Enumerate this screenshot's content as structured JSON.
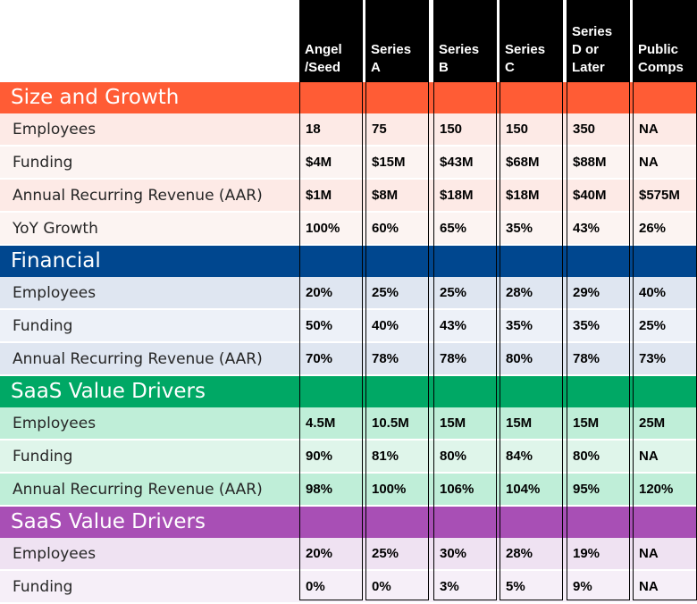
{
  "columns": [
    [
      "Angel",
      "/Seed"
    ],
    [
      "Series",
      "A"
    ],
    [
      "Series",
      "B"
    ],
    [
      "Series",
      "C"
    ],
    [
      "Series",
      "D or",
      "Later"
    ],
    [
      "Public",
      "Comps"
    ]
  ],
  "sections": [
    {
      "title": "Size and Growth",
      "color": "#ff5c35",
      "row_colors": [
        "#fdeae6",
        "#fcf4f2"
      ],
      "rows": [
        {
          "label": "Employees",
          "values": [
            "18",
            "75",
            "150",
            "150",
            "350",
            "NA"
          ]
        },
        {
          "label": "Funding",
          "values": [
            "$4M",
            "$15M",
            "$43M",
            "$68M",
            "$88M",
            "NA"
          ]
        },
        {
          "label": "Annual Recurring Revenue (AAR)",
          "values": [
            "$1M",
            "$8M",
            "$18M",
            "$18M",
            "$40M",
            "$575M"
          ]
        },
        {
          "label": "YoY Growth",
          "values": [
            "100%",
            "60%",
            "65%",
            "35%",
            "43%",
            "26%"
          ]
        }
      ]
    },
    {
      "title": "Financial",
      "color": "#00478f",
      "row_colors": [
        "#dfe6f1",
        "#edf1f8"
      ],
      "rows": [
        {
          "label": "Employees",
          "values": [
            "20%",
            "25%",
            "25%",
            "28%",
            "29%",
            "40%"
          ]
        },
        {
          "label": "Funding",
          "values": [
            "50%",
            "40%",
            "43%",
            "35%",
            "35%",
            "25%"
          ]
        },
        {
          "label": "Annual Recurring Revenue (AAR)",
          "values": [
            "70%",
            "78%",
            "78%",
            "80%",
            "78%",
            "73%"
          ]
        }
      ]
    },
    {
      "title": "SaaS Value Drivers",
      "color": "#00a865",
      "row_colors": [
        "#bfeed8",
        "#dff5ea"
      ],
      "rows": [
        {
          "label": "Employees",
          "values": [
            "4.5M",
            "10.5M",
            "15M",
            "15M",
            "15M",
            "25M"
          ]
        },
        {
          "label": "Funding",
          "values": [
            "90%",
            "81%",
            "80%",
            "84%",
            "80%",
            "NA"
          ]
        },
        {
          "label": "Annual Recurring Revenue (AAR)",
          "values": [
            "98%",
            "100%",
            "106%",
            "104%",
            "95%",
            "120%"
          ]
        }
      ]
    },
    {
      "title": "SaaS Value Drivers",
      "color": "#a84fb5",
      "row_colors": [
        "#efe2f2",
        "#f6eff8"
      ],
      "rows": [
        {
          "label": "Employees",
          "values": [
            "20%",
            "25%",
            "30%",
            "28%",
            "19%",
            "NA"
          ]
        },
        {
          "label": "Funding",
          "values": [
            "0%",
            "0%",
            "3%",
            "5%",
            "9%",
            "NA"
          ]
        }
      ]
    }
  ]
}
